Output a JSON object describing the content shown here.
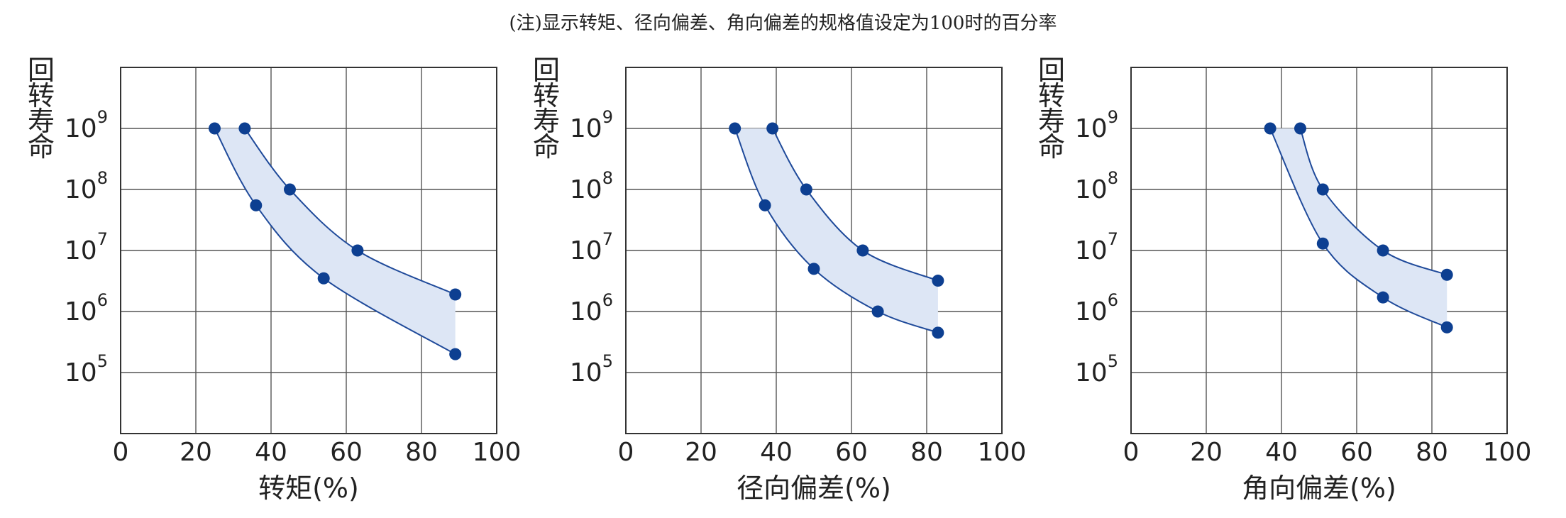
{
  "note": "(注)显示转矩、径向偏差、角向偏差的规格值设定为100时的百分率",
  "colors": {
    "point": "#0d3f91",
    "band": "#dde6f5",
    "grid": "#555555",
    "curve": "#1f4a9a"
  },
  "chart_data": [
    {
      "type": "scatter",
      "xlabel": "转矩(%)",
      "ylabel": "回转寿命",
      "xlim": [
        0,
        100
      ],
      "x_ticks": [
        "0",
        "20",
        "40",
        "60",
        "80",
        "100"
      ],
      "y_scale": "log",
      "ylim": [
        10000,
        10000000000
      ],
      "y_ticks": [
        {
          "base": "10",
          "exp": "5",
          "value": 100000
        },
        {
          "base": "10",
          "exp": "6",
          "value": 1000000
        },
        {
          "base": "10",
          "exp": "7",
          "value": 10000000
        },
        {
          "base": "10",
          "exp": "8",
          "value": 100000000
        },
        {
          "base": "10",
          "exp": "9",
          "value": 1000000000
        }
      ],
      "grid": true,
      "series": [
        {
          "x": [
            33,
            45,
            63,
            89
          ],
          "y": [
            1000000000,
            100000000,
            10000000,
            1900000
          ]
        },
        {
          "x": [
            25,
            36,
            54,
            89
          ],
          "y": [
            1000000000,
            55000000,
            3500000,
            200000
          ]
        }
      ]
    },
    {
      "type": "scatter",
      "xlabel": "径向偏差(%)",
      "ylabel": "回转寿命",
      "xlim": [
        0,
        100
      ],
      "x_ticks": [
        "0",
        "20",
        "40",
        "60",
        "80",
        "100"
      ],
      "y_scale": "log",
      "ylim": [
        10000,
        10000000000
      ],
      "y_ticks": [
        {
          "base": "10",
          "exp": "5",
          "value": 100000
        },
        {
          "base": "10",
          "exp": "6",
          "value": 1000000
        },
        {
          "base": "10",
          "exp": "7",
          "value": 10000000
        },
        {
          "base": "10",
          "exp": "8",
          "value": 100000000
        },
        {
          "base": "10",
          "exp": "9",
          "value": 1000000000
        }
      ],
      "grid": true,
      "series": [
        {
          "x": [
            39,
            48,
            63,
            83
          ],
          "y": [
            1000000000,
            100000000,
            10000000,
            3200000
          ]
        },
        {
          "x": [
            29,
            37,
            50,
            67,
            83
          ],
          "y": [
            1000000000,
            55000000,
            5000000,
            1000000,
            450000
          ]
        }
      ]
    },
    {
      "type": "scatter",
      "xlabel": "角向偏差(%)",
      "ylabel": "回转寿命",
      "xlim": [
        0,
        100
      ],
      "x_ticks": [
        "0",
        "20",
        "40",
        "60",
        "80",
        "100"
      ],
      "y_scale": "log",
      "ylim": [
        10000,
        10000000000
      ],
      "y_ticks": [
        {
          "base": "10",
          "exp": "5",
          "value": 100000
        },
        {
          "base": "10",
          "exp": "6",
          "value": 1000000
        },
        {
          "base": "10",
          "exp": "7",
          "value": 10000000
        },
        {
          "base": "10",
          "exp": "8",
          "value": 100000000
        },
        {
          "base": "10",
          "exp": "9",
          "value": 1000000000
        }
      ],
      "grid": true,
      "series": [
        {
          "x": [
            45,
            51,
            67,
            84
          ],
          "y": [
            1000000000,
            100000000,
            10000000,
            4000000
          ]
        },
        {
          "x": [
            37,
            51,
            67,
            84
          ],
          "y": [
            1000000000,
            13000000,
            1700000,
            550000
          ]
        }
      ]
    }
  ]
}
